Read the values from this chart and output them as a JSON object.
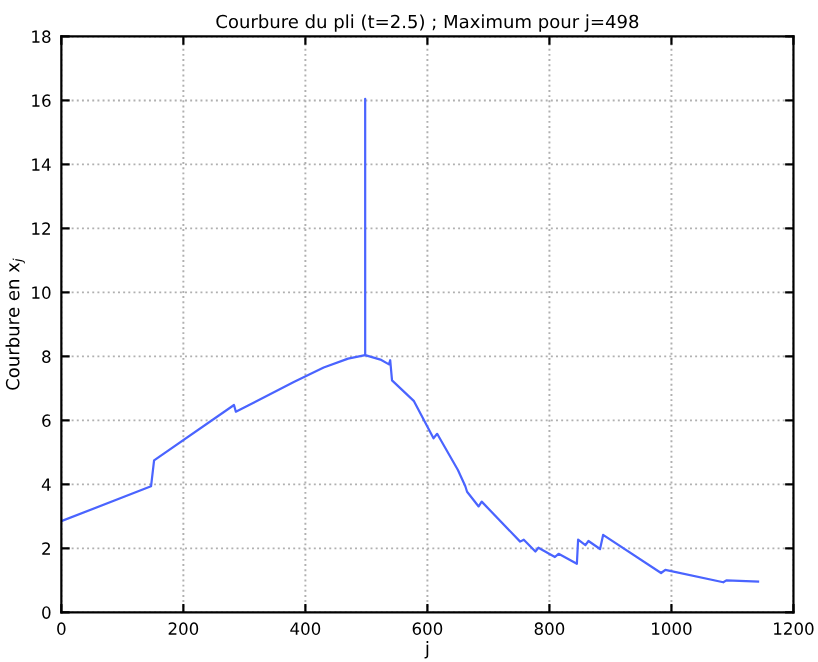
{
  "chart_data": {
    "type": "line",
    "title": "Courbure du pli (t=2.5) ; Maximum pour j=498",
    "xlabel": "j",
    "ylabel": "Courbure en x$_{j}$",
    "series": [
      {
        "color": "#4a64ff",
        "x": [
          0,
          147,
          152,
          283,
          286,
          381,
          430,
          470,
          498,
          498,
          498,
          523,
          537,
          539,
          542,
          578,
          610,
          616,
          650,
          662,
          665,
          684,
          689,
          752,
          758,
          777,
          782,
          809,
          815,
          845,
          847,
          859,
          864,
          883,
          888,
          983,
          990,
          1085,
          1090,
          1142
        ],
        "values": [
          2.85,
          3.94,
          4.75,
          6.48,
          6.27,
          7.2,
          7.65,
          7.93,
          8.04,
          16.05,
          8.04,
          7.9,
          7.75,
          7.88,
          7.25,
          6.6,
          5.44,
          5.58,
          4.45,
          3.95,
          3.77,
          3.31,
          3.46,
          2.21,
          2.27,
          1.9,
          2.02,
          1.73,
          1.83,
          1.52,
          2.27,
          2.1,
          2.23,
          1.98,
          2.42,
          1.23,
          1.33,
          0.94,
          1.0,
          0.96
        ]
      }
    ],
    "xlim": [
      0,
      1200
    ],
    "ylim": [
      0,
      18
    ],
    "xticks": [
      0,
      200,
      400,
      600,
      800,
      1000,
      1200
    ],
    "yticks": [
      0,
      2,
      4,
      6,
      8,
      10,
      12,
      14,
      16,
      18
    ],
    "grid": true,
    "legend": false,
    "marker": "none",
    "line_style": "solid"
  }
}
